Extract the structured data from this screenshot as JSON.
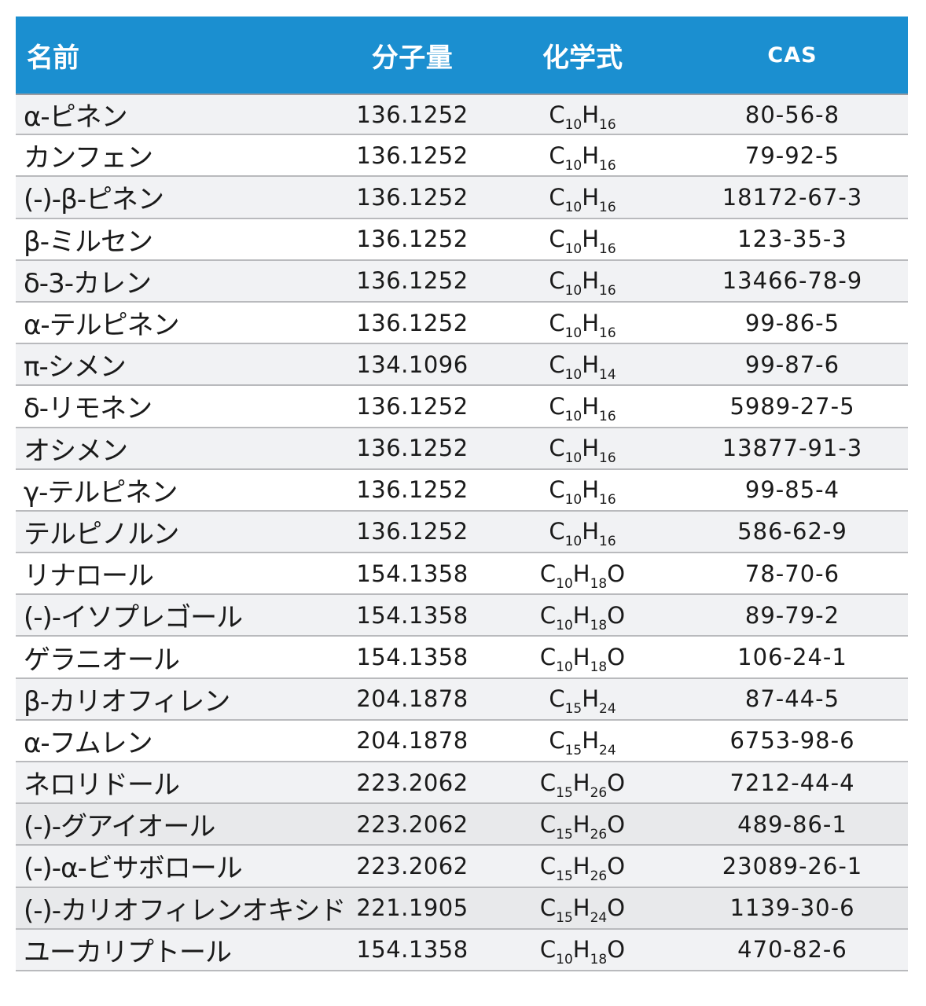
{
  "headers": {
    "name": "名前",
    "mw": "分子量",
    "formula": "化学式",
    "cas": "CAS"
  },
  "rows": [
    {
      "name": "α-ピネン",
      "mw": "136.1252",
      "formula": {
        "a": "C",
        "a_sub": "10",
        "b": "H",
        "b_sub": "16",
        "c": ""
      },
      "cas": "80-56-8"
    },
    {
      "name": "カンフェン",
      "mw": "136.1252",
      "formula": {
        "a": "C",
        "a_sub": "10",
        "b": "H",
        "b_sub": "16",
        "c": ""
      },
      "cas": "79-92-5"
    },
    {
      "name": "(-)-β-ピネン",
      "mw": "136.1252",
      "formula": {
        "a": "C",
        "a_sub": "10",
        "b": "H",
        "b_sub": "16",
        "c": ""
      },
      "cas": "18172-67-3"
    },
    {
      "name": "β-ミルセン",
      "mw": "136.1252",
      "formula": {
        "a": "C",
        "a_sub": "10",
        "b": "H",
        "b_sub": "16",
        "c": ""
      },
      "cas": "123-35-3"
    },
    {
      "name": "δ-3-カレン",
      "mw": "136.1252",
      "formula": {
        "a": "C",
        "a_sub": "10",
        "b": "H",
        "b_sub": "16",
        "c": ""
      },
      "cas": "13466-78-9"
    },
    {
      "name": "α-テルピネン",
      "mw": "136.1252",
      "formula": {
        "a": "C",
        "a_sub": "10",
        "b": "H",
        "b_sub": "16",
        "c": ""
      },
      "cas": "99-86-5"
    },
    {
      "name": "π-シメン",
      "mw": "134.1096",
      "formula": {
        "a": "C",
        "a_sub": "10",
        "b": "H",
        "b_sub": "14",
        "c": ""
      },
      "cas": "99-87-6"
    },
    {
      "name": "δ-リモネン",
      "mw": "136.1252",
      "formula": {
        "a": "C",
        "a_sub": "10",
        "b": "H",
        "b_sub": "16",
        "c": ""
      },
      "cas": "5989-27-5"
    },
    {
      "name": "オシメン",
      "mw": "136.1252",
      "formula": {
        "a": "C",
        "a_sub": "10",
        "b": "H",
        "b_sub": "16",
        "c": ""
      },
      "cas": "13877-91-3"
    },
    {
      "name": "γ-テルピネン",
      "mw": "136.1252",
      "formula": {
        "a": "C",
        "a_sub": "10",
        "b": "H",
        "b_sub": "16",
        "c": ""
      },
      "cas": "99-85-4"
    },
    {
      "name": "テルピノルン",
      "mw": "136.1252",
      "formula": {
        "a": "C",
        "a_sub": "10",
        "b": "H",
        "b_sub": "16",
        "c": ""
      },
      "cas": "586-62-9"
    },
    {
      "name": "リナロール",
      "mw": "154.1358",
      "formula": {
        "a": "C",
        "a_sub": "10",
        "b": "H",
        "b_sub": "18",
        "c": "O"
      },
      "cas": "78-70-6"
    },
    {
      "name": "(-)-イソプレゴール",
      "mw": "154.1358",
      "formula": {
        "a": "C",
        "a_sub": "10",
        "b": "H",
        "b_sub": "18",
        "c": "O"
      },
      "cas": "89-79-2"
    },
    {
      "name": "ゲラニオール",
      "mw": "154.1358",
      "formula": {
        "a": "C",
        "a_sub": "10",
        "b": "H",
        "b_sub": "18",
        "c": "O"
      },
      "cas": "106-24-1"
    },
    {
      "name": "β-カリオフィレン",
      "mw": "204.1878",
      "formula": {
        "a": "C",
        "a_sub": "15",
        "b": "H",
        "b_sub": "24",
        "c": ""
      },
      "cas": "87-44-5"
    },
    {
      "name": "α-フムレン",
      "mw": "204.1878",
      "formula": {
        "a": "C",
        "a_sub": "15",
        "b": "H",
        "b_sub": "24",
        "c": ""
      },
      "cas": "6753-98-6"
    },
    {
      "name": "ネロリドール",
      "mw": "223.2062",
      "formula": {
        "a": "C",
        "a_sub": "15",
        "b": "H",
        "b_sub": "26",
        "c": "O"
      },
      "cas": "7212-44-4"
    },
    {
      "name": "(-)-グアイオール",
      "mw": "223.2062",
      "formula": {
        "a": "C",
        "a_sub": "15",
        "b": "H",
        "b_sub": "26",
        "c": "O"
      },
      "cas": "489-86-1"
    },
    {
      "name": "(-)-α-ビサボロール",
      "mw": "223.2062",
      "formula": {
        "a": "C",
        "a_sub": "15",
        "b": "H",
        "b_sub": "26",
        "c": "O"
      },
      "cas": "23089-26-1"
    },
    {
      "name": "(-)-カリオフィレンオキシド",
      "mw": "221.1905",
      "formula": {
        "a": "C",
        "a_sub": "15",
        "b": "H",
        "b_sub": "24",
        "c": "O"
      },
      "cas": "1139-30-6"
    },
    {
      "name": "ユーカリプトール",
      "mw": "154.1358",
      "formula": {
        "a": "C",
        "a_sub": "10",
        "b": "H",
        "b_sub": "18",
        "c": "O"
      },
      "cas": "470-82-6"
    }
  ]
}
